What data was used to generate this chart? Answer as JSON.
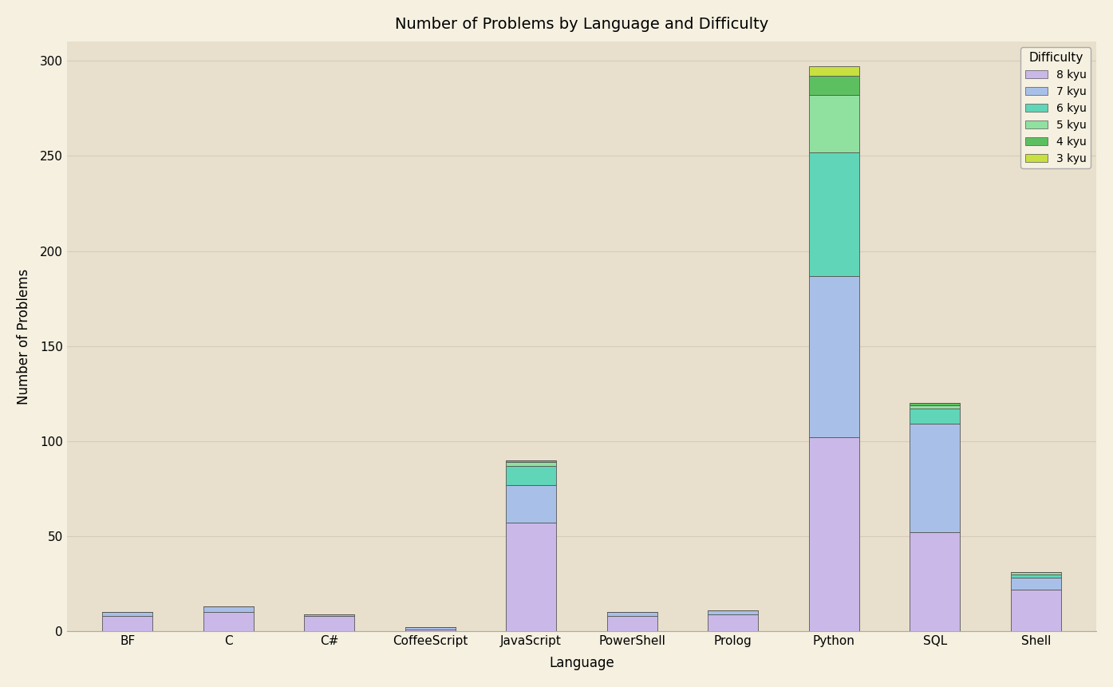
{
  "title": "Number of Problems by Language and Difficulty",
  "xlabel": "Language",
  "ylabel": "Number of Problems",
  "plot_background_color": "#E8E0CC",
  "figure_background_color": "#F5F0E0",
  "languages": [
    "BF",
    "C",
    "C#",
    "CoffeeScript",
    "JavaScript",
    "PowerShell",
    "Prolog",
    "Python",
    "SQL",
    "Shell"
  ],
  "difficulties": [
    "8 kyu",
    "7 kyu",
    "6 kyu",
    "5 kyu",
    "4 kyu",
    "3 kyu"
  ],
  "colors": [
    "#C9B8E8",
    "#A8C0E8",
    "#60D5B8",
    "#90E0A0",
    "#5DC060",
    "#C8E040"
  ],
  "data": {
    "BF": [
      8,
      2,
      0,
      0,
      0,
      0
    ],
    "C": [
      10,
      3,
      0,
      0,
      0,
      0
    ],
    "C#": [
      8,
      1,
      0,
      0,
      0,
      0
    ],
    "CoffeeScript": [
      1,
      1,
      0,
      0,
      0,
      0
    ],
    "JavaScript": [
      57,
      20,
      10,
      2,
      1,
      0
    ],
    "PowerShell": [
      8,
      2,
      0,
      0,
      0,
      0
    ],
    "Prolog": [
      9,
      2,
      0,
      0,
      0,
      0
    ],
    "Python": [
      102,
      85,
      65,
      30,
      10,
      5
    ],
    "SQL": [
      52,
      57,
      8,
      2,
      1,
      0
    ],
    "Shell": [
      22,
      6,
      2,
      1,
      0,
      0
    ]
  },
  "ylim": [
    0,
    310
  ],
  "yticks": [
    0,
    50,
    100,
    150,
    200,
    250,
    300
  ],
  "legend_title": "Difficulty",
  "grid_color": "#D5CDB8",
  "bar_edge_color": "#555555",
  "bar_width": 0.5
}
